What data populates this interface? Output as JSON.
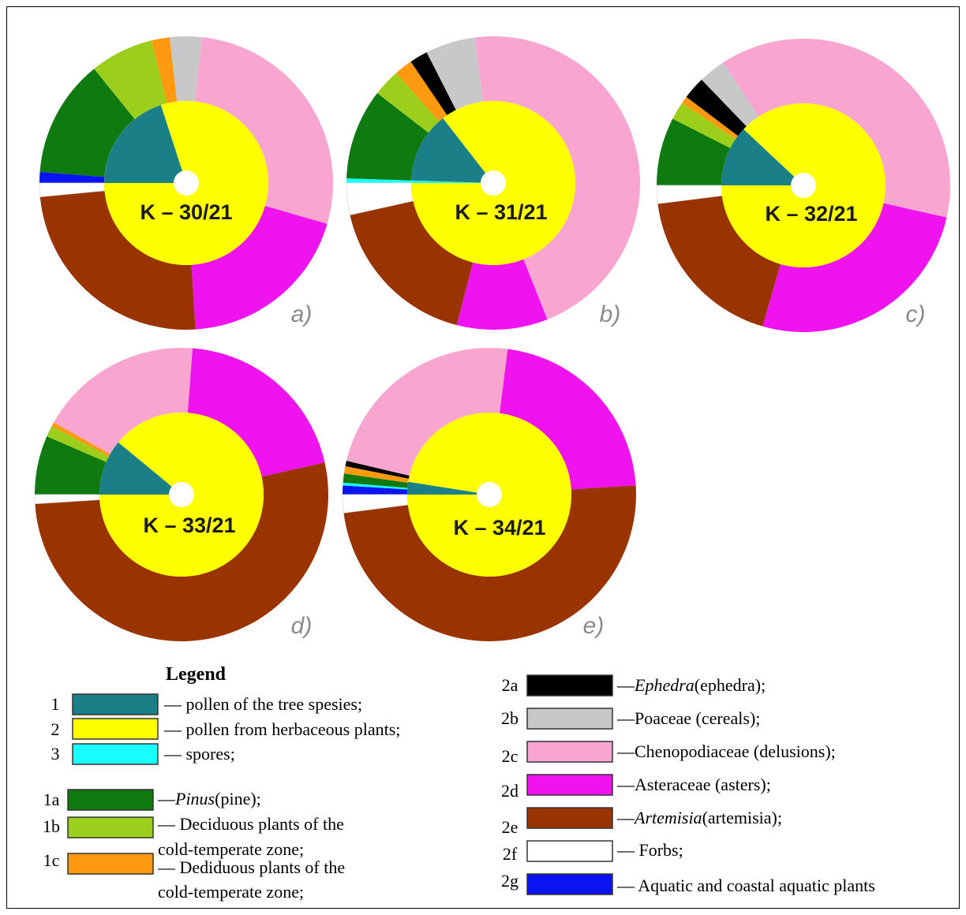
{
  "chart_data": [
    {
      "type": "donut",
      "panel": "a)",
      "center_label": "K – 30/21",
      "inner_ring": [
        {
          "key": "1",
          "value": 20
        },
        {
          "key": "2",
          "value": 80
        }
      ],
      "outer_ring": [
        {
          "key": "2g",
          "value": 1.2
        },
        {
          "key": "1a",
          "value": 13
        },
        {
          "key": "1b",
          "value": 7
        },
        {
          "key": "1c",
          "value": 2
        },
        {
          "key": "2b",
          "value": 3.5
        },
        {
          "key": "2c",
          "value": 27.8
        },
        {
          "key": "2d",
          "value": 19.5
        },
        {
          "key": "2e",
          "value": 24.5
        },
        {
          "key": "2f",
          "value": 1.5
        }
      ]
    },
    {
      "type": "donut",
      "panel": "b)",
      "center_label": "K – 31/21",
      "inner_ring": [
        {
          "key": "3",
          "value": 0.5
        },
        {
          "key": "1",
          "value": 14
        },
        {
          "key": "2",
          "value": 85.5
        }
      ],
      "outer_ring": [
        {
          "key": "3",
          "value": 0.5
        },
        {
          "key": "1a",
          "value": 10
        },
        {
          "key": "1b",
          "value": 3
        },
        {
          "key": "1c",
          "value": 2
        },
        {
          "key": "2a",
          "value": 2
        },
        {
          "key": "2b",
          "value": 5.5
        },
        {
          "key": "2c",
          "value": 46
        },
        {
          "key": "2d",
          "value": 10
        },
        {
          "key": "2e",
          "value": 17.5
        },
        {
          "key": "2f",
          "value": 3.5
        }
      ]
    },
    {
      "type": "donut",
      "panel": "c)",
      "center_label": "K – 32/21",
      "inner_ring": [
        {
          "key": "1",
          "value": 12
        },
        {
          "key": "2",
          "value": 88
        }
      ],
      "outer_ring": [
        {
          "key": "1a",
          "value": 7.5
        },
        {
          "key": "1b",
          "value": 2
        },
        {
          "key": "1c",
          "value": 0.8
        },
        {
          "key": "2a",
          "value": 2.5
        },
        {
          "key": "2b",
          "value": 3
        },
        {
          "key": "2c",
          "value": 37.7
        },
        {
          "key": "2d",
          "value": 26
        },
        {
          "key": "2e",
          "value": 18.5
        },
        {
          "key": "2f",
          "value": 2
        }
      ]
    },
    {
      "type": "donut",
      "panel": "d)",
      "center_label": "K – 33/21",
      "inner_ring": [
        {
          "key": "1",
          "value": 11
        },
        {
          "key": "2",
          "value": 89
        }
      ],
      "outer_ring": [
        {
          "key": "1a",
          "value": 6.5
        },
        {
          "key": "1b",
          "value": 1.2
        },
        {
          "key": "1c",
          "value": 0.5
        },
        {
          "key": "2c",
          "value": 18
        },
        {
          "key": "2d",
          "value": 20.3
        },
        {
          "key": "2e",
          "value": 52.5
        },
        {
          "key": "2f",
          "value": 1
        }
      ]
    },
    {
      "type": "donut",
      "panel": "e)",
      "center_label": "K – 34/21",
      "inner_ring": [
        {
          "key": "1",
          "value": 2.5
        },
        {
          "key": "2",
          "value": 97.5
        }
      ],
      "outer_ring": [
        {
          "key": "2g",
          "value": 1
        },
        {
          "key": "3",
          "value": 0.3
        },
        {
          "key": "1a",
          "value": 1
        },
        {
          "key": "1c",
          "value": 0.8
        },
        {
          "key": "2a",
          "value": 0.6
        },
        {
          "key": "2c",
          "value": 23.3
        },
        {
          "key": "2d",
          "value": 22
        },
        {
          "key": "2e",
          "value": 49
        },
        {
          "key": "2f",
          "value": 2
        }
      ]
    }
  ],
  "legend": {
    "title": "Legend",
    "left": [
      {
        "num": "1",
        "key": "1",
        "text": "— pollen of the tree spesies;"
      },
      {
        "num": "2",
        "key": "2",
        "text": "— pollen from herbaceous plants;"
      },
      {
        "num": "3",
        "key": "3",
        "text": "— spores;"
      },
      {
        "num": "1a",
        "key": "1a",
        "pre": "—",
        "italic": "Pinus",
        "text": "(pine);"
      },
      {
        "num": "1b",
        "key": "1b",
        "text": "— Deciduous plants of the",
        "text2": "cold-temperate zone;"
      },
      {
        "num": "1c",
        "key": "1c",
        "text": "— Dediduous plants of the",
        "text2": "cold-temperate zone;"
      }
    ],
    "right": [
      {
        "num": "2a",
        "key": "2a",
        "pre": "—",
        "italic": "Ephedra",
        "text": "(ephedra);"
      },
      {
        "num": "2b",
        "key": "2b",
        "text": "—Poaceae (cereals);"
      },
      {
        "num": "2c",
        "key": "2c",
        "text": "—Chenopodiaceae (delusions);"
      },
      {
        "num": "2d",
        "key": "2d",
        "text": "—Asteraceae (asters);"
      },
      {
        "num": "2e",
        "key": "2e",
        "pre": "—",
        "italic": "Artemisia",
        "text": "(artemisia);"
      },
      {
        "num": "2f",
        "key": "2f",
        "text": "— Forbs;"
      },
      {
        "num": "2g",
        "key": "2g",
        "text": "— Aquatic and coastal aquatic plants"
      }
    ]
  },
  "colors": {
    "1": "#1a7f86",
    "2": "#ffff00",
    "3": "#19ffff",
    "1a": "#0f7a10",
    "1b": "#9ccf1c",
    "1c": "#ff9a10",
    "2a": "#000000",
    "2b": "#c8c8c8",
    "2c": "#f8a5cf",
    "2d": "#ef13ef",
    "2e": "#993300",
    "2f": "#ffffff",
    "2g": "#0a14f0"
  }
}
